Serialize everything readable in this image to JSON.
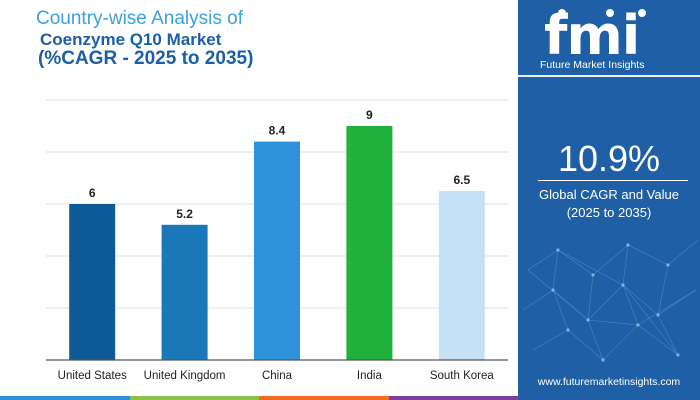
{
  "title": {
    "line1": "Country-wise Analysis of",
    "line2": "Coenzyme Q10 Market",
    "line3": "(%CAGR - 2025 to 2035)"
  },
  "chart_data": {
    "type": "bar",
    "categories": [
      "United States",
      "United Kingdom",
      "China",
      "India",
      "South Korea"
    ],
    "values": [
      6,
      5.2,
      8.4,
      9,
      6.5
    ],
    "value_labels": [
      "6",
      "5.2",
      "8.4",
      "9",
      "6.5"
    ],
    "bar_colors": [
      "#0d5a96",
      "#1a78b8",
      "#2e92da",
      "#1fb13a",
      "#c6e1f5"
    ],
    "ylim": [
      0,
      10
    ],
    "grid": true,
    "xlabel": "",
    "ylabel": ""
  },
  "panel": {
    "logo": "fmi",
    "logo_subtitle": "Future Market Insights",
    "headline_value": "10.9%",
    "headline_caption": "Global CAGR and Value\n(2025 to 2035)",
    "website": "www.futuremarketinsights.com"
  },
  "colors": {
    "title_light": "#3aa0e0",
    "title_dark": "#1a5fa8",
    "panel_bg": "#1e5fa6",
    "strip": [
      "#2e92da",
      "#8bc34a",
      "#f26b21",
      "#7b3fa0"
    ]
  }
}
